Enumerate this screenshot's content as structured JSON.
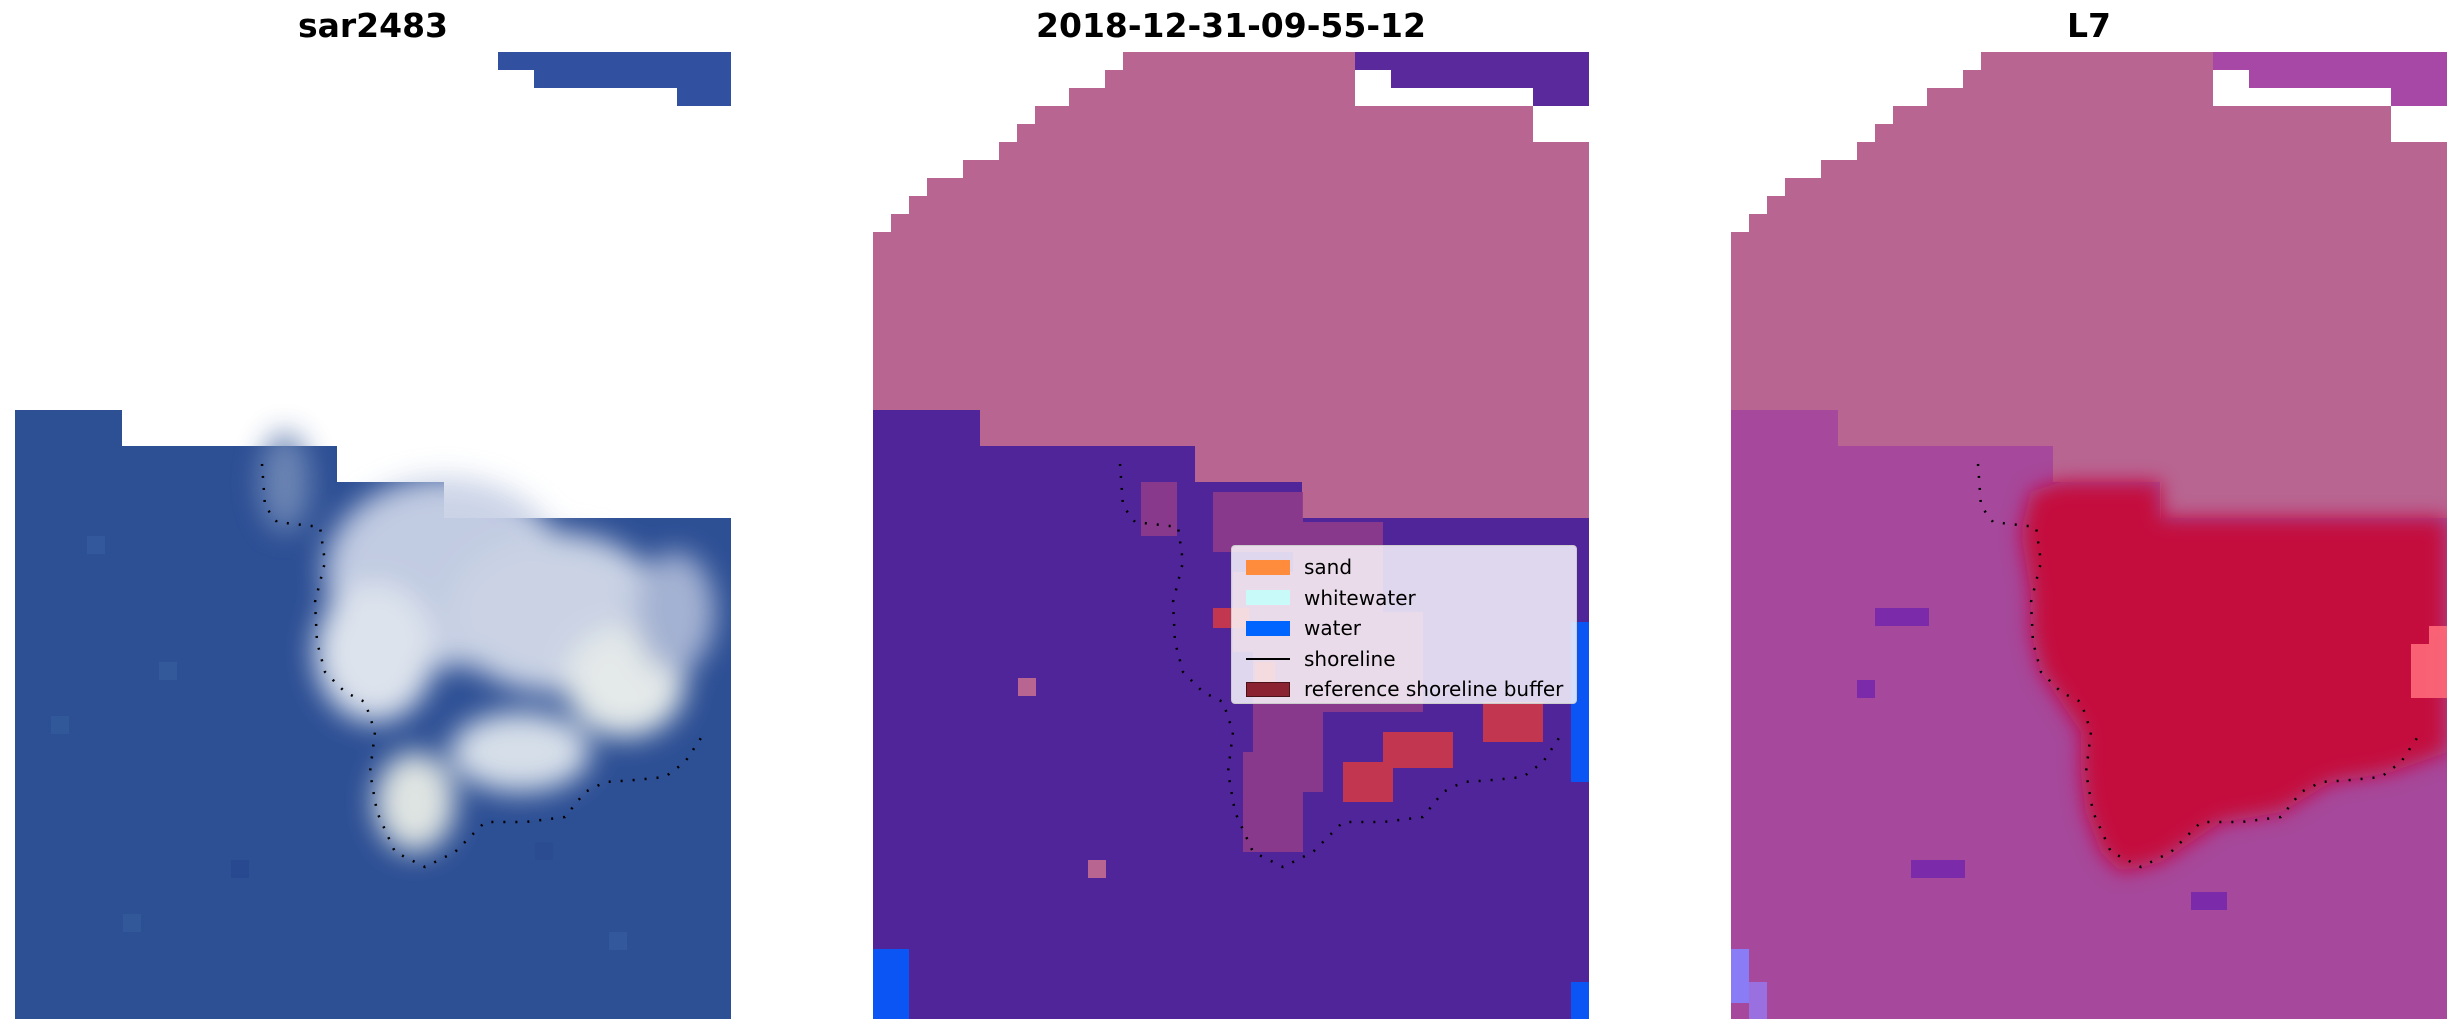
{
  "figure": {
    "titles": {
      "left": "sar2483",
      "middle": "2018-12-31-09-55-12",
      "right": "L7"
    }
  },
  "legend": {
    "items": [
      {
        "label": "sand",
        "color": "#ff8c3c",
        "kind": "patch"
      },
      {
        "label": "whitewater",
        "color": "#c8fafa",
        "kind": "patch"
      },
      {
        "label": "water",
        "color": "#0064ff",
        "kind": "patch"
      },
      {
        "label": "shoreline",
        "color": "#000000",
        "kind": "line"
      },
      {
        "label": "reference shoreline buffer",
        "color": "#8b2232",
        "kind": "patch"
      }
    ]
  },
  "colors": {
    "rgb_water": "#2d4f94",
    "rgb_cloud": "#d6dcea",
    "class_nodata": "#b86592",
    "class_other": "#51259a",
    "class_buffer": "#c2374f",
    "class_water": "#0b55f5",
    "index_land": "#a6489b",
    "index_water": "#c4103c",
    "nodata_white": "#ffffff"
  }
}
